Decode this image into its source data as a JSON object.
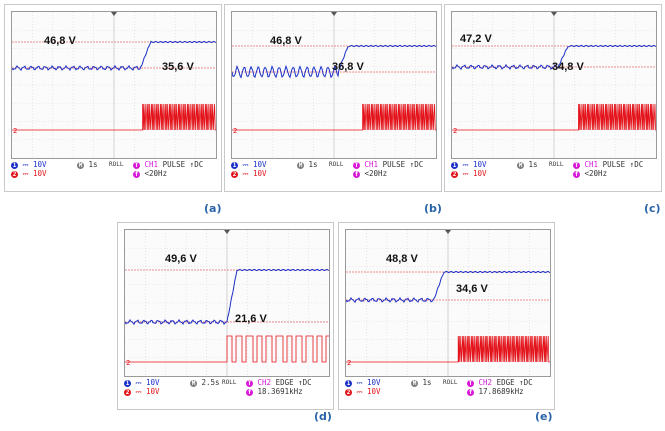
{
  "colors": {
    "ch1": "#1a2fc7",
    "ch2": "#e3141b",
    "ref": "#ef6b6b",
    "grid": "#d8d8d8",
    "caption": "#2a64a8",
    "math": "#7c7c7c",
    "trig": "#d61ad6"
  },
  "panels": [
    {
      "id": "a",
      "caption": "(a)",
      "upper_label": "46,8 V",
      "lower_label": "35,6 V",
      "ch1_scale": "10V",
      "ch2_scale": "10V",
      "timebase": "1s",
      "mode": "ROLL",
      "trig_src": "CH1",
      "trig_type": "PULSE",
      "trig_couple": "DC",
      "trig_value": "<20Hz",
      "chart_data": {
        "type": "line",
        "step_at_division": 6.3,
        "pulse_start_division": 6.4,
        "series": [
          {
            "channel": "CH1",
            "before_v": 35.6,
            "after_v": 46.8,
            "ripple": "small"
          },
          {
            "channel": "CH2",
            "pulse_style": "dense"
          }
        ]
      }
    },
    {
      "id": "b",
      "caption": "(b)",
      "upper_label": "46,8 V",
      "lower_label": "36,8 V",
      "ch1_scale": "10V",
      "ch2_scale": "10V",
      "timebase": "1s",
      "mode": "ROLL",
      "trig_src": "CH1",
      "trig_type": "PULSE",
      "trig_couple": "DC",
      "trig_value": "<20Hz",
      "chart_data": {
        "type": "line",
        "step_at_division": 5.2,
        "pulse_start_division": 6.4,
        "series": [
          {
            "channel": "CH1",
            "before_v": 36.8,
            "after_v": 46.8,
            "ripple": "large"
          },
          {
            "channel": "CH2",
            "pulse_style": "dense"
          }
        ]
      }
    },
    {
      "id": "c",
      "caption": "(c)",
      "upper_label": "47,2 V",
      "lower_label": "34,8 V",
      "ch1_scale": "10V",
      "ch2_scale": "10V",
      "timebase": "1s",
      "mode": "ROLL",
      "trig_src": "CH1",
      "trig_type": "PULSE",
      "trig_couple": "DC",
      "trig_value": "<20Hz",
      "chart_data": {
        "type": "line",
        "step_at_division": 5.2,
        "pulse_start_division": 6.2,
        "series": [
          {
            "channel": "CH1",
            "before_v": 34.8,
            "after_v": 47.2,
            "ripple": "small"
          },
          {
            "channel": "CH2",
            "pulse_style": "dense"
          }
        ]
      }
    },
    {
      "id": "d",
      "caption": "(d)",
      "upper_label": "49,6 V",
      "lower_label": "21,6 V",
      "ch1_scale": "10V",
      "ch2_scale": "10V",
      "timebase": "2.5s",
      "mode": "ROLL",
      "trig_src": "CH2",
      "trig_type": "EDGE",
      "trig_couple": "DC",
      "trig_value": "18.3691kHz",
      "chart_data": {
        "type": "line",
        "step_at_division": 5.0,
        "pulse_start_division": 5.0,
        "series": [
          {
            "channel": "CH1",
            "before_v": 21.6,
            "after_v": 49.6,
            "ripple": "small"
          },
          {
            "channel": "CH2",
            "pulse_style": "bursts"
          }
        ]
      }
    },
    {
      "id": "e",
      "caption": "(e)",
      "upper_label": "48,8 V",
      "lower_label": "34,6 V",
      "ch1_scale": "10V",
      "ch2_scale": "10V",
      "timebase": "1s",
      "mode": "ROLL",
      "trig_src": "CH2",
      "trig_type": "EDGE",
      "trig_couple": "DC",
      "trig_value": "17.8689kHz",
      "chart_data": {
        "type": "line",
        "step_at_division": 4.3,
        "pulse_start_division": 5.5,
        "series": [
          {
            "channel": "CH1",
            "before_v": 34.6,
            "after_v": 48.8,
            "ripple": "small"
          },
          {
            "channel": "CH2",
            "pulse_style": "dense"
          }
        ]
      }
    }
  ]
}
